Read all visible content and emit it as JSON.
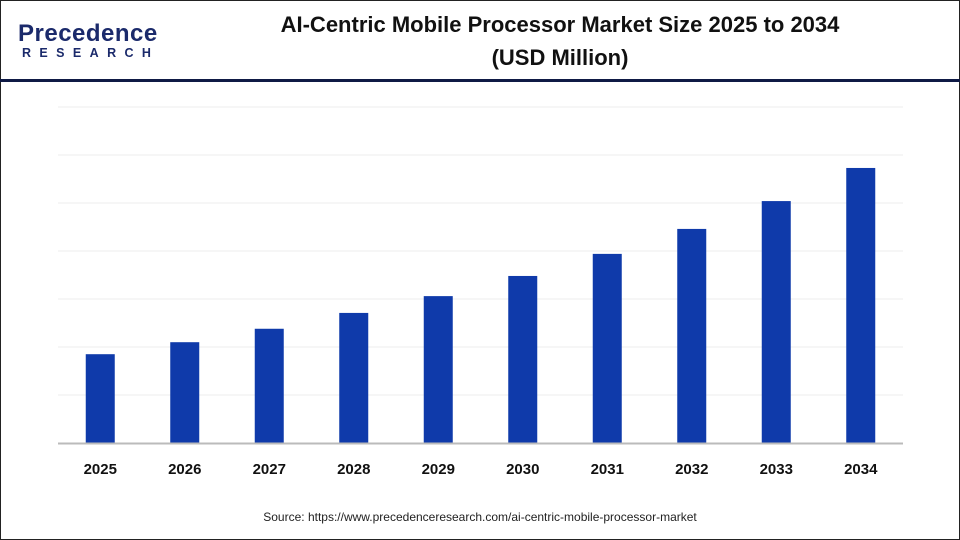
{
  "logo": {
    "main": "Precedence",
    "sub": "RESEARCH",
    "colors": {
      "dark": "#1b2a6b",
      "accent": "#2f6fdc"
    }
  },
  "title_line1": "AI-Centric Mobile Processor Market Size 2025 to 2034",
  "title_line2": "(USD Million)",
  "source": "Source: https://www.precedenceresearch.com/ai-centric-mobile-processor-market",
  "chart_data": {
    "type": "bar",
    "title": "AI-Centric Mobile Processor Market Size 2025 to 2034 (USD Million)",
    "xlabel": "",
    "ylabel": "",
    "categories": [
      "2025",
      "2026",
      "2027",
      "2028",
      "2029",
      "2030",
      "2031",
      "2032",
      "2033",
      "2034"
    ],
    "values": [
      1.85,
      2.1,
      2.38,
      2.71,
      3.06,
      3.48,
      3.94,
      4.46,
      5.04,
      5.73
    ],
    "ylim": [
      0,
      7
    ],
    "y_tick_labels_shown": false,
    "grid": true,
    "bar_color": "#0f3aaa"
  }
}
